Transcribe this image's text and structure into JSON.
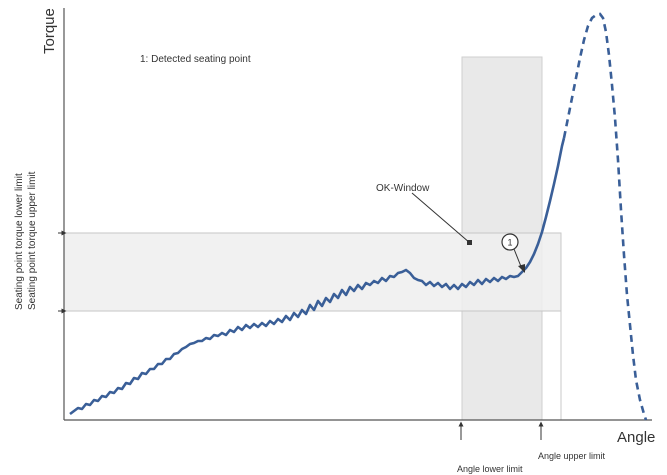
{
  "diagram": {
    "axes": {
      "y_title": "Torque",
      "x_title": "Angle"
    },
    "legend_note": "1: Detected seating point",
    "ok_window_label": "OK-Window",
    "seating_point_marker": "1",
    "y_limit_labels": {
      "lower": "Seating point torque lower limit",
      "upper": "Seating point torque upper limit"
    },
    "x_limit_labels": {
      "lower": "Angle lower limit",
      "upper": "Angle upper limit"
    },
    "colors": {
      "curve": "#3a5f98",
      "window_fill": "#e6e6e6",
      "window_stroke": "#bdbdbd",
      "axis": "#555555",
      "text": "#333333"
    }
  }
}
